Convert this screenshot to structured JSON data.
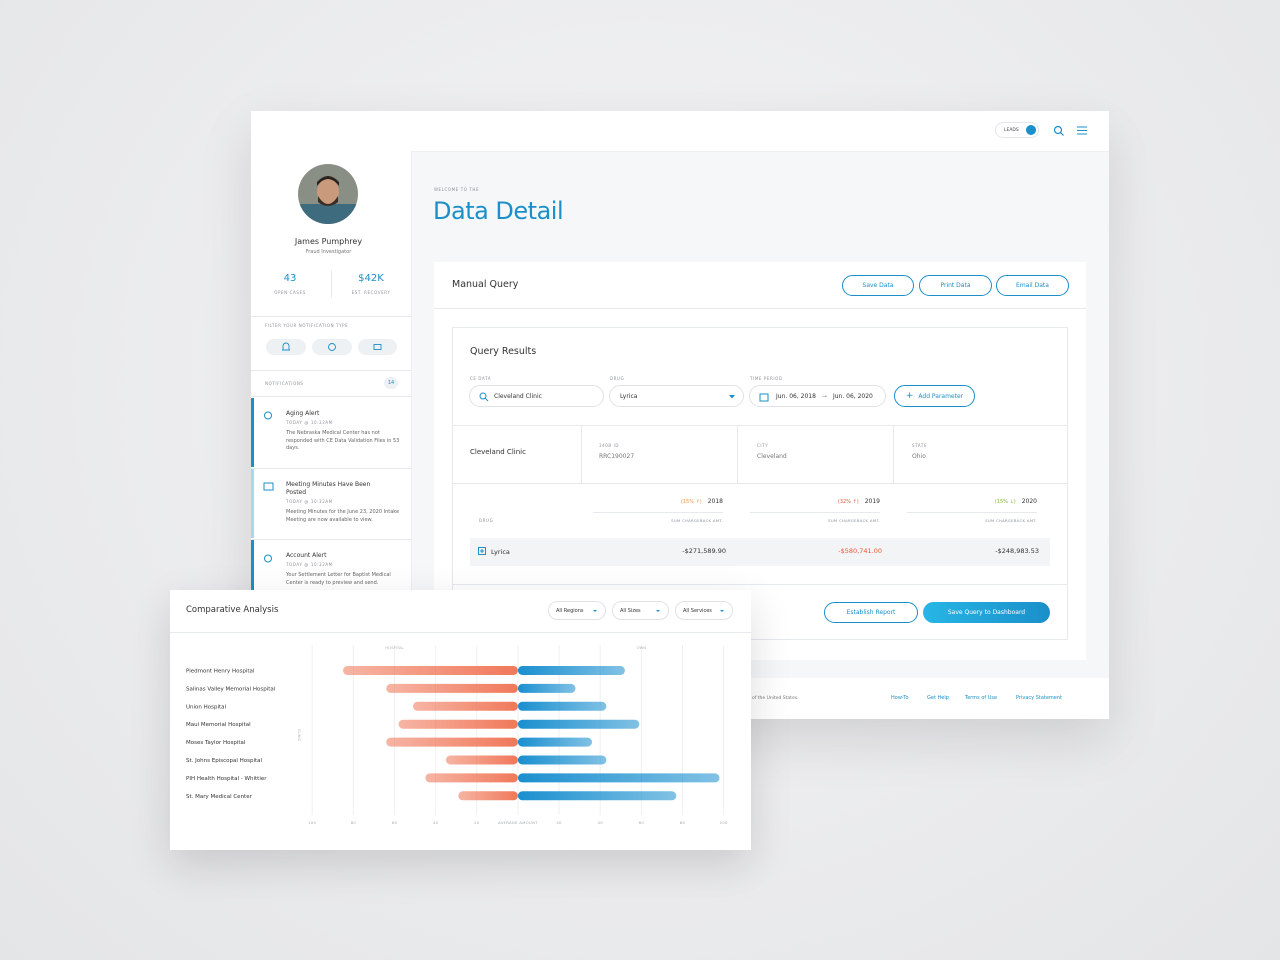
{
  "header": {
    "leads": "LEADS"
  },
  "profile": {
    "name": "James Pumphrey",
    "role": "Fraud Investigator",
    "stats": [
      {
        "value": "43",
        "label": "OPEN CASES"
      },
      {
        "value": "$42K",
        "label": "EST. RECOVERY"
      }
    ],
    "filter_label": "FILTER YOUR NOTIFICATION TYPE",
    "notifications_label": "NOTIFICATIONS",
    "notifications_count": "14",
    "notifications": [
      {
        "title": "Aging Alert",
        "time": "TODAY @ 10:32AM",
        "body": "The Nebraska Medical Center has not responded with CE Data Validation Files in 53 days."
      },
      {
        "title": "Meeting Minutes Have Been Posted",
        "time": "TODAY @ 10:32AM",
        "body": "Meeting Minutes for the June 23, 2020 Intake Meeting are now available to view."
      },
      {
        "title": "Account Alert",
        "time": "TODAY @ 10:32AM",
        "body": "Your Settlement Letter for Baptist Medical Center is ready to preview and send."
      }
    ]
  },
  "main": {
    "eyebrow": "WELCOME TO THE",
    "title": "Data Detail"
  },
  "query": {
    "title": "Manual Query",
    "buttons": [
      "Save Data",
      "Print Data",
      "Email Data"
    ],
    "results_title": "Query Results",
    "fields": [
      {
        "label": "CE DATA",
        "value": "Cleveland Clinic"
      },
      {
        "label": "DRUG",
        "value": "Lyrica"
      },
      {
        "label": "TIME PERIOD",
        "from": "Jun. 06, 2018",
        "to": "Jun. 06, 2020"
      }
    ],
    "add_parameter": "Add Parameter",
    "entity": "Cleveland Clinic",
    "info": [
      {
        "label": "340B ID",
        "value": "RRC190027"
      },
      {
        "label": "CITY",
        "value": "Cleveland"
      },
      {
        "label": "STATE",
        "value": "Ohio"
      }
    ],
    "table": {
      "drug_header": "DRUG",
      "columns": [
        {
          "change": "(15% ↑)",
          "year": "2018",
          "sub": "SUM CHARGEBACK AMT."
        },
        {
          "change": "(32% ↑)",
          "year": "2019",
          "sub": "SUM CHARGEBACK AMT."
        },
        {
          "change": "(15% ↓)",
          "year": "2020",
          "sub": "SUM CHARGEBACK AMT."
        }
      ],
      "row": {
        "drug": "Lyrica",
        "values": [
          "-$271,589.90",
          "-$580,741.00",
          "-$248,983.53"
        ]
      }
    },
    "actions": [
      "Establish Report",
      "Save Query to Dashboard"
    ]
  },
  "footer": {
    "text": "of the United States.",
    "links": [
      "How-To",
      "Get Help",
      "Terms of Use",
      "Privacy Statement"
    ]
  },
  "chart_data": {
    "type": "diverging_bar",
    "title": "Comparative Analysis",
    "filters": [
      "All Regions",
      "All Sizes",
      "All Services"
    ],
    "top_labels": [
      "HOSPITAL",
      "OWN"
    ],
    "y_label": "CLINIC",
    "categories": [
      "Piedmont Henry Hospital",
      "Salinas Valley Memorial Hospital",
      "Union Hospital",
      "Maui Memorial Hospital",
      "Moses Taylor Hospital",
      "St. Johns Episcopal Hospital",
      "PIH Health Hospital - Whittier",
      "St. Mary Medical Center"
    ],
    "series": [
      {
        "color": "#f0785a",
        "values": [
          -85,
          -64,
          -51,
          -58,
          -64,
          -35,
          -45,
          -29
        ]
      },
      {
        "color": "#1a8fcf",
        "values": [
          52,
          28,
          43,
          59,
          36,
          43,
          98,
          77
        ]
      }
    ],
    "xlim": [
      -103,
      106
    ],
    "xticks": [
      {
        "value": -100,
        "label": "100"
      },
      {
        "value": -80,
        "label": "80"
      },
      {
        "value": -60,
        "label": "60"
      },
      {
        "value": -40,
        "label": "40"
      },
      {
        "value": -20,
        "label": "20"
      },
      {
        "value": 0,
        "label": "AVERAGE AMOUNT"
      },
      20,
      40,
      60,
      80,
      100
    ],
    "grid": true
  }
}
